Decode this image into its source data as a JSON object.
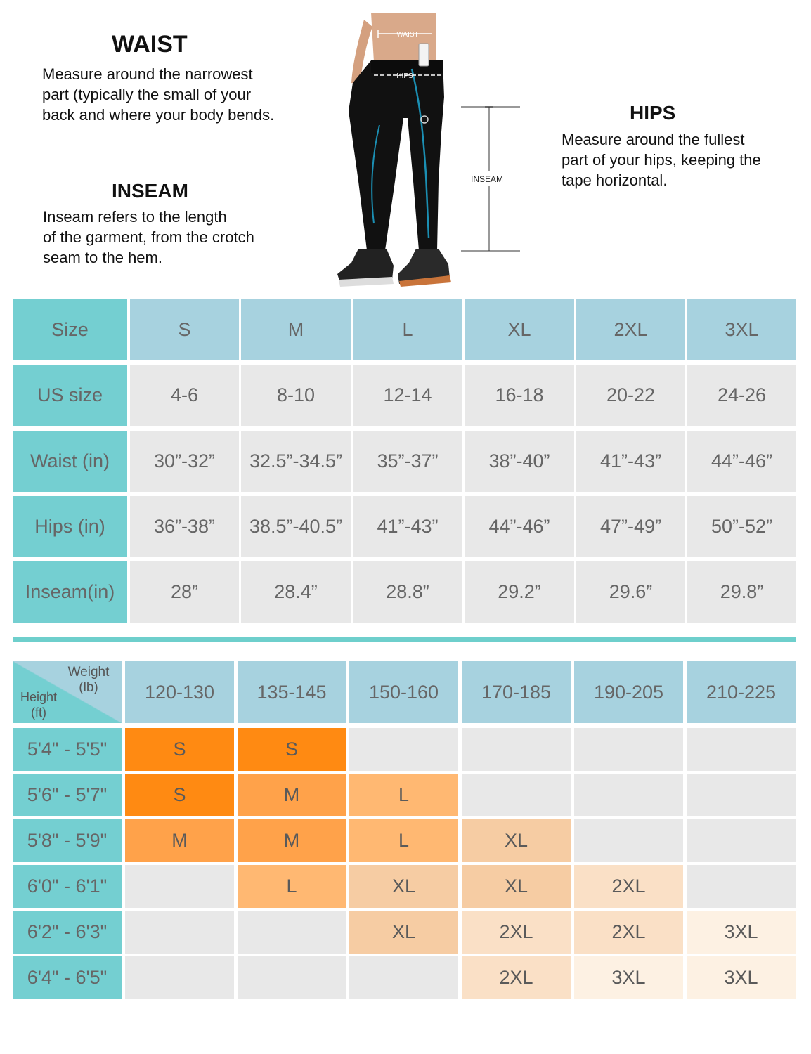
{
  "guide": {
    "waist": {
      "title": "WAIST",
      "lines": [
        "Measure around the narrowest",
        "part (typically the small of your",
        "back and where your body bends."
      ]
    },
    "inseam": {
      "title": "INSEAM",
      "lines": [
        "Inseam refers to the length",
        "of the garment, from the crotch",
        "seam to the hem."
      ]
    },
    "hips": {
      "title": "HIPS",
      "lines": [
        "Measure around the fullest",
        "part of your hips, keeping the",
        "tape horizontal."
      ]
    },
    "figure_labels": {
      "waist": "WAIST",
      "hips": "HIPS",
      "inseam": "INSEAM"
    }
  },
  "size_chart": {
    "header_label": "Size",
    "sizes": [
      "S",
      "M",
      "L",
      "XL",
      "2XL",
      "3XL"
    ],
    "rows": [
      {
        "label": "US size",
        "values": [
          "4-6",
          "8-10",
          "12-14",
          "16-18",
          "20-22",
          "24-26"
        ]
      },
      {
        "label": "Waist (in)",
        "values": [
          "30”-32”",
          "32.5”-34.5”",
          "35”-37”",
          "38”-40”",
          "41”-43”",
          "44”-46”"
        ]
      },
      {
        "label": "Hips (in)",
        "values": [
          "36”-38”",
          "38.5”-40.5”",
          "41”-43”",
          "44”-46”",
          "47”-49”",
          "50”-52”"
        ]
      },
      {
        "label": "Inseam(in)",
        "values": [
          "28”",
          "28.4”",
          "28.8”",
          "29.2”",
          "29.6”",
          "29.8”"
        ]
      }
    ]
  },
  "fit_chart": {
    "corner": {
      "weight_line1": "Weight",
      "weight_line2": "(lb)",
      "height_line1": "Height",
      "height_line2": "(ft)"
    },
    "weights": [
      "120-130",
      "135-145",
      "150-160",
      "170-185",
      "190-205",
      "210-225"
    ],
    "rows": [
      {
        "height": "5'4\" - 5'5\"",
        "cells": [
          "S",
          "S",
          "",
          "",
          "",
          ""
        ]
      },
      {
        "height": "5'6\" - 5'7\"",
        "cells": [
          "S",
          "M",
          "L",
          "",
          "",
          ""
        ]
      },
      {
        "height": "5'8\" - 5'9\"",
        "cells": [
          "M",
          "M",
          "L",
          "XL",
          "",
          ""
        ]
      },
      {
        "height": "6'0\" - 6'1\"",
        "cells": [
          "",
          "L",
          "XL",
          "XL",
          "2XL",
          ""
        ]
      },
      {
        "height": "6'2\" - 6'3\"",
        "cells": [
          "",
          "",
          "XL",
          "2XL",
          "2XL",
          "3XL"
        ]
      },
      {
        "height": "6'4\" - 6'5\"",
        "cells": [
          "",
          "",
          "",
          "2XL",
          "3XL",
          "3XL"
        ]
      }
    ],
    "colors": {
      "S": "#ff8a12",
      "M": "#ffa24a",
      "L": "#ffb872",
      "XL": "#f6cca3",
      "2XL": "#fae0c6",
      "3XL": "#fdf1e3",
      "empty": "#e8e8e8"
    }
  },
  "colors": {
    "teal": "#74cfd1",
    "light_blue": "#a7d2df",
    "gray_cell": "#e8e8e8",
    "divider": "#6ecfcc"
  }
}
